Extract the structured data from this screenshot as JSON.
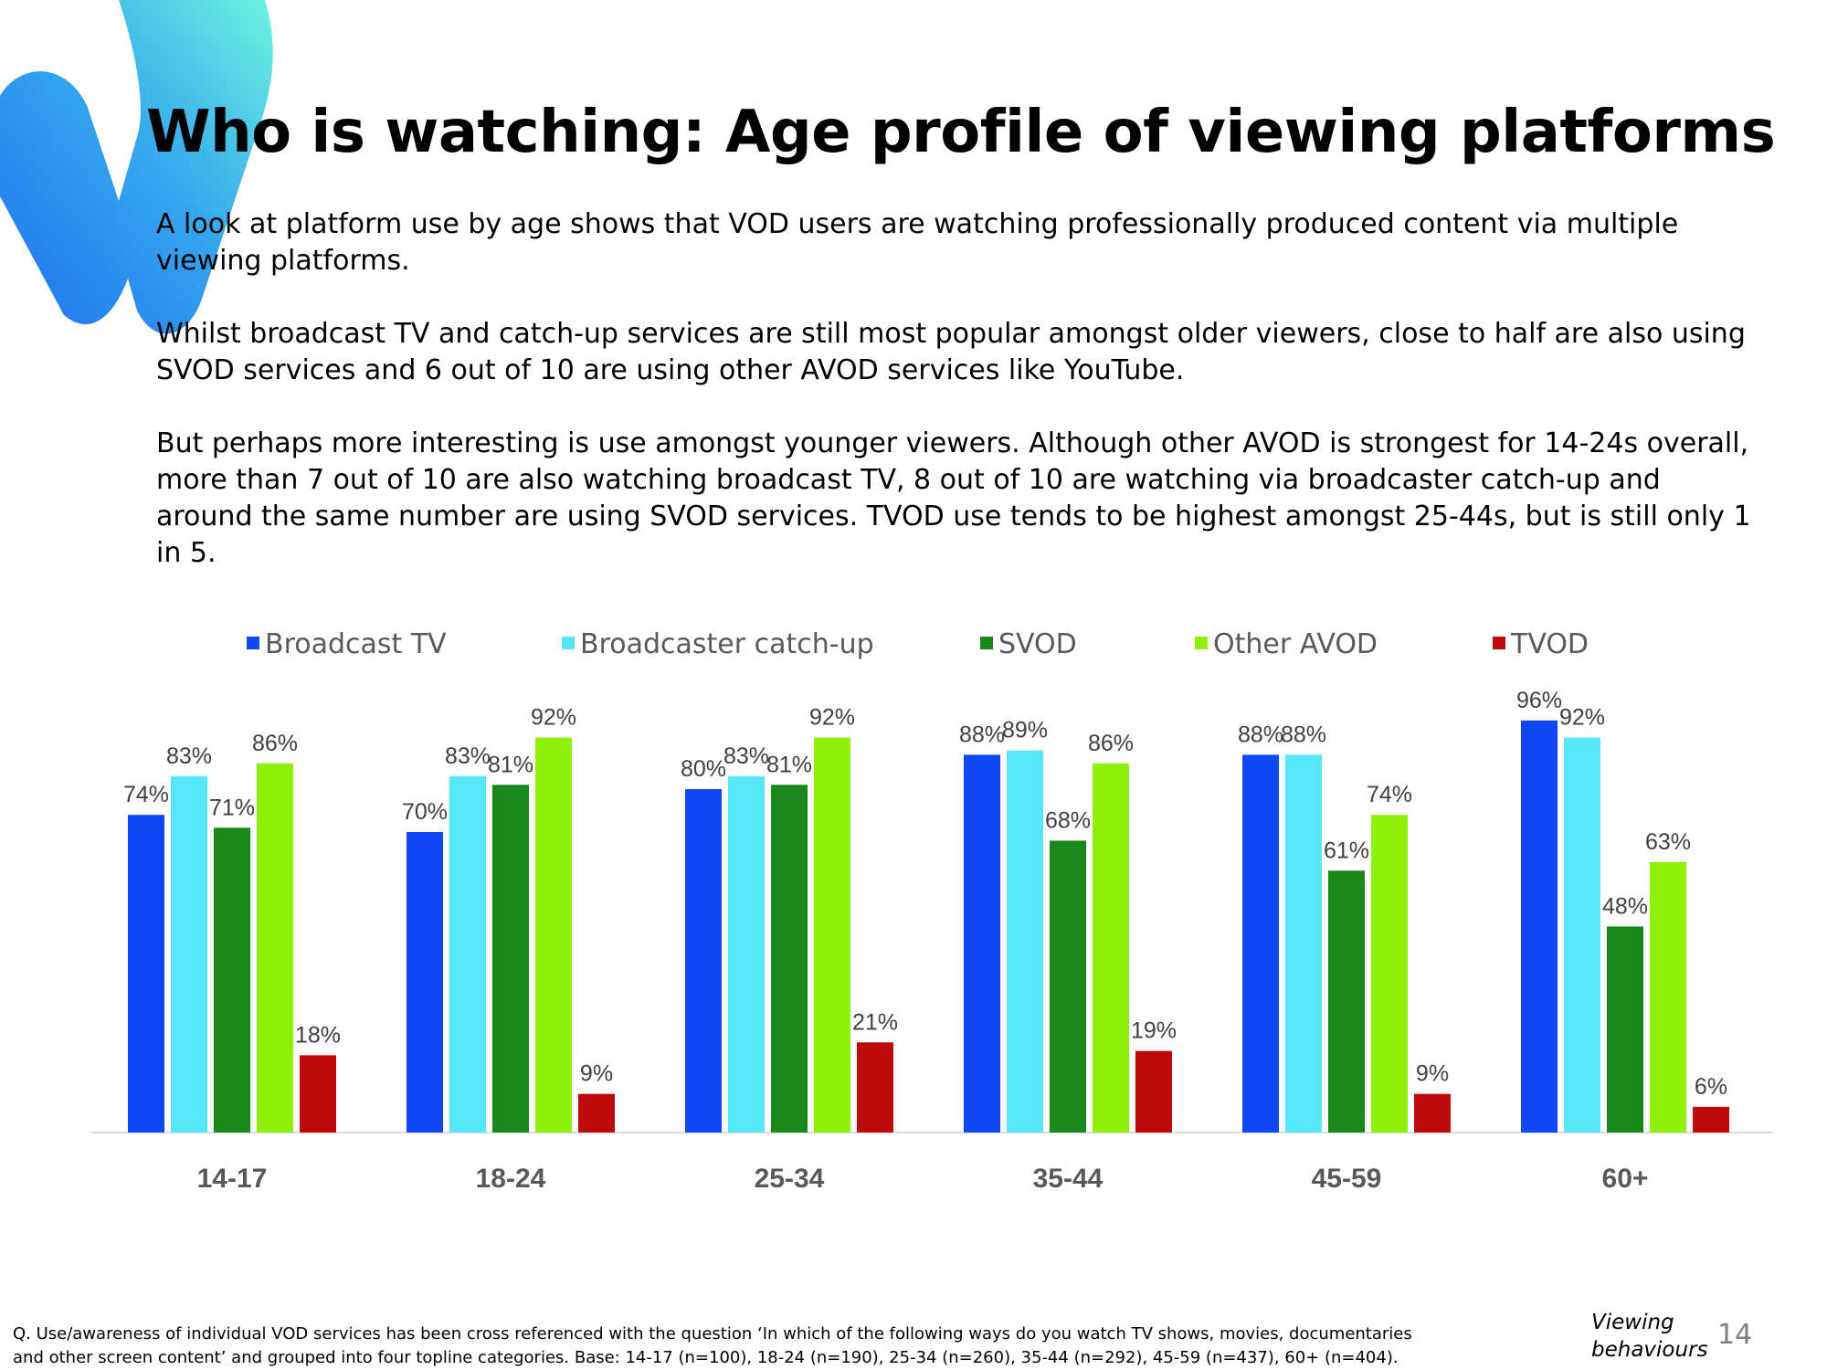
{
  "title": "Who is watching: Age profile of viewing platforms",
  "intro": {
    "p1": "A look at platform use by age shows that VOD users are watching professionally produced content via multiple viewing platforms.",
    "p2": "Whilst broadcast TV and catch-up services are still most popular amongst older viewers, close to half are also using SVOD services and 6 out of 10 are using other AVOD services like YouTube.",
    "p3": "But perhaps more interesting is use amongst younger viewers. Although other AVOD is strongest for 14-24s overall, more than 7 out of 10 are also watching broadcast TV, 8 out of 10 are watching via broadcaster catch-up and around the same number are using SVOD services. TVOD use tends to be highest amongst 25-44s, but is still only 1 in 5."
  },
  "chart_data": {
    "type": "bar",
    "title": "",
    "xlabel": "",
    "ylabel": "",
    "ylim": [
      0,
      100
    ],
    "grid": false,
    "legend_position": "top",
    "categories": [
      "14-17",
      "18-24",
      "25-34",
      "35-44",
      "45-59",
      "60+"
    ],
    "series": [
      {
        "name": "Broadcast TV",
        "color": "#0f47f5",
        "values": [
          74,
          70,
          80,
          88,
          88,
          96
        ],
        "labels": [
          "74%",
          "70%",
          "80%",
          "88%",
          "88%",
          "96%"
        ]
      },
      {
        "name": "Broadcaster catch-up",
        "color": "#55e6fa",
        "values": [
          83,
          83,
          83,
          89,
          88,
          92
        ],
        "labels": [
          "83%",
          "83%",
          "83%",
          "89%",
          "88%",
          "92%"
        ]
      },
      {
        "name": "SVOD",
        "color": "#198719",
        "values": [
          71,
          81,
          81,
          68,
          61,
          48
        ],
        "labels": [
          "71%",
          "81%",
          "81%",
          "68%",
          "61%",
          "48%"
        ]
      },
      {
        "name": "Other AVOD",
        "color": "#8ff00a",
        "values": [
          86,
          92,
          92,
          86,
          74,
          63
        ],
        "labels": [
          "86%",
          "92%",
          "92%",
          "86%",
          "74%",
          "63%"
        ]
      },
      {
        "name": "TVOD",
        "color": "#bd0a0a",
        "values": [
          18,
          9,
          21,
          19,
          9,
          6
        ],
        "labels": [
          "18%",
          "9%",
          "21%",
          "19%",
          "9%",
          "6%"
        ]
      }
    ]
  },
  "footnote": {
    "line1": "Q. Use/awareness of individual VOD services has been cross referenced with the question ‘In which of the following ways do you watch TV shows, movies, documentaries",
    "line2": "and other screen content’ and grouped into four topline categories. Base: 14-17 (n=100), 18-24 (n=190), 25-34 (n=260), 35-44 (n=292), 45-59 (n=437), 60+ (n=404)."
  },
  "section": {
    "line1": "Viewing",
    "line2": "behaviours"
  },
  "page_number": "14"
}
